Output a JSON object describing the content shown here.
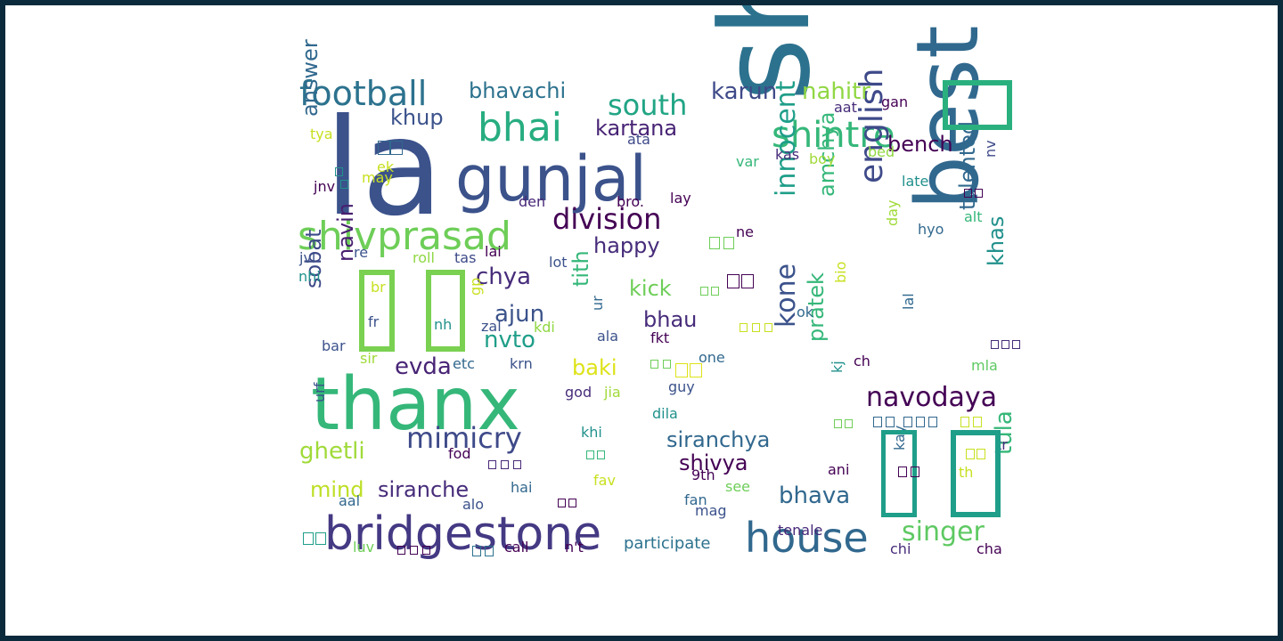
{
  "words": [
    {
      "text": "la",
      "color": "#3b528b"
    },
    {
      "text": "shiva",
      "color": "#2c728e"
    },
    {
      "text": "thanx",
      "color": "#35b779"
    },
    {
      "text": "best",
      "color": "#31688e"
    },
    {
      "text": "gunjal",
      "color": "#3b528b"
    },
    {
      "text": "bridgestone",
      "color": "#443983"
    },
    {
      "text": "house",
      "color": "#31688e"
    },
    {
      "text": "shivprasad",
      "color": "#6ece58"
    },
    {
      "text": "football",
      "color": "#2c728e"
    },
    {
      "text": "bhai",
      "color": "#27ad81"
    },
    {
      "text": "shintre",
      "color": "#35b779"
    },
    {
      "text": "south",
      "color": "#21a585"
    },
    {
      "text": "division",
      "color": "#440154"
    },
    {
      "text": "english",
      "color": "#3e4a89"
    },
    {
      "text": "navodaya",
      "color": "#440154"
    },
    {
      "text": "innocent",
      "color": "#1f9e89"
    },
    {
      "text": "kone",
      "color": "#3b528b"
    },
    {
      "text": "mimicry",
      "color": "#3e4a89"
    },
    {
      "text": "singer",
      "color": "#5ec962"
    },
    {
      "text": "siranchya",
      "color": "#31688e"
    },
    {
      "text": "shivya",
      "color": "#440154"
    },
    {
      "text": "bhava",
      "color": "#31688e"
    },
    {
      "text": "tula",
      "color": "#35b779"
    },
    {
      "text": "ghetli",
      "color": "#a0da39"
    },
    {
      "text": "evda",
      "color": "#482475"
    },
    {
      "text": "karun",
      "color": "#3e4a89"
    },
    {
      "text": "nahitr",
      "color": "#90d743"
    },
    {
      "text": "bhavachi",
      "color": "#2c728e"
    },
    {
      "text": "kartana",
      "color": "#482475"
    },
    {
      "text": "khup",
      "color": "#3b528b"
    },
    {
      "text": "answer",
      "color": "#31688e"
    },
    {
      "text": "happy",
      "color": "#472c7a"
    },
    {
      "text": "bench",
      "color": "#440154"
    },
    {
      "text": "chya",
      "color": "#472c7a"
    },
    {
      "text": "ajun",
      "color": "#3b528b"
    },
    {
      "text": "nvto",
      "color": "#1f9e89"
    },
    {
      "text": "navin",
      "color": "#481f70"
    },
    {
      "text": "sobat",
      "color": "#3e4a89"
    },
    {
      "text": "tith",
      "color": "#35b779"
    },
    {
      "text": "baki",
      "color": "#dde318"
    },
    {
      "text": "kick",
      "color": "#6ece58"
    },
    {
      "text": "bhau",
      "color": "#472c7a"
    },
    {
      "text": "amchya",
      "color": "#35b779"
    },
    {
      "text": "talented",
      "color": "#31688e"
    },
    {
      "text": "khas",
      "color": "#21918c"
    },
    {
      "text": "pratek",
      "color": "#35b779"
    },
    {
      "text": "mind",
      "color": "#bddf26"
    },
    {
      "text": "siranche",
      "color": "#472c7a"
    },
    {
      "text": "participate",
      "color": "#2c728e"
    },
    {
      "text": "mla",
      "color": "#5ec962"
    },
    {
      "text": "aat",
      "color": "#472c7a"
    },
    {
      "text": "gan",
      "color": "#440154"
    },
    {
      "text": "ata",
      "color": "#3e4a89"
    },
    {
      "text": "kas",
      "color": "#472c7a"
    },
    {
      "text": "boy",
      "color": "#a0da39"
    },
    {
      "text": "bed",
      "color": "#90d743"
    },
    {
      "text": "var",
      "color": "#35b779"
    },
    {
      "text": "lay",
      "color": "#440154"
    },
    {
      "text": "bro.",
      "color": "#440154"
    },
    {
      "text": "den",
      "color": "#482878"
    },
    {
      "text": "late",
      "color": "#21918c"
    },
    {
      "text": "alt",
      "color": "#35b779"
    },
    {
      "text": "hyo",
      "color": "#31688e"
    },
    {
      "text": "day",
      "color": "#a0da39"
    },
    {
      "text": "ne",
      "color": "#440154"
    },
    {
      "text": "lot",
      "color": "#3b528b"
    },
    {
      "text": "roll",
      "color": "#90d743"
    },
    {
      "text": "tas",
      "color": "#3e4a89"
    },
    {
      "text": "lai",
      "color": "#440154"
    },
    {
      "text": "re",
      "color": "#3b528b"
    },
    {
      "text": "jvl",
      "color": "#3b528b"
    },
    {
      "text": "nhi",
      "color": "#21918c"
    },
    {
      "text": "jnv",
      "color": "#440154"
    },
    {
      "text": "may",
      "color": "#c8e020"
    },
    {
      "text": "ek",
      "color": "#c8e020"
    },
    {
      "text": "tya",
      "color": "#c8e020"
    },
    {
      "text": "br",
      "color": "#c8e020"
    },
    {
      "text": "fr",
      "color": "#3b528b"
    },
    {
      "text": "nh",
      "color": "#21918c"
    },
    {
      "text": "gp",
      "color": "#c8e020"
    },
    {
      "text": "ur",
      "color": "#31688e"
    },
    {
      "text": "zal",
      "color": "#3b528b"
    },
    {
      "text": "kdi",
      "color": "#90d743"
    },
    {
      "text": "ala",
      "color": "#3b528b"
    },
    {
      "text": "fkt",
      "color": "#440154"
    },
    {
      "text": "bar",
      "color": "#3b528b"
    },
    {
      "text": "sir",
      "color": "#a0da39"
    },
    {
      "text": "etc",
      "color": "#31688e"
    },
    {
      "text": "krn",
      "color": "#3b528b"
    },
    {
      "text": "god",
      "color": "#472c7a"
    },
    {
      "text": "jia",
      "color": "#a0da39"
    },
    {
      "text": "guy",
      "color": "#3b528b"
    },
    {
      "text": "one",
      "color": "#31688e"
    },
    {
      "text": "dila",
      "color": "#21918c"
    },
    {
      "text": "ok",
      "color": "#31688e"
    },
    {
      "text": "bio",
      "color": "#c8e020"
    },
    {
      "text": "lal",
      "color": "#31688e"
    },
    {
      "text": "ch",
      "color": "#440154"
    },
    {
      "text": "kj",
      "color": "#21918c"
    },
    {
      "text": "urf",
      "color": "#3b528b"
    },
    {
      "text": "khi",
      "color": "#21918c"
    },
    {
      "text": "fod",
      "color": "#440154"
    },
    {
      "text": "ani",
      "color": "#440154"
    },
    {
      "text": "9th",
      "color": "#440154"
    },
    {
      "text": "see",
      "color": "#6ece58"
    },
    {
      "text": "fan",
      "color": "#31688e"
    },
    {
      "text": "mag",
      "color": "#3b528b"
    },
    {
      "text": "tenale",
      "color": "#482878"
    },
    {
      "text": "fav",
      "color": "#c8e020"
    },
    {
      "text": "hai",
      "color": "#31688e"
    },
    {
      "text": "aal",
      "color": "#31688e"
    },
    {
      "text": "alo",
      "color": "#3b528b"
    },
    {
      "text": "luv",
      "color": "#6ece58"
    },
    {
      "text": "call",
      "color": "#440154"
    },
    {
      "text": "n't",
      "color": "#440154"
    },
    {
      "text": "chi",
      "color": "#472c7a"
    },
    {
      "text": "cha",
      "color": "#440154"
    },
    {
      "text": "tr",
      "color": "#472c7a"
    },
    {
      "text": "th",
      "color": "#c8e020"
    },
    {
      "text": "kay",
      "color": "#31688e"
    },
    {
      "text": "nv",
      "color": "#3e4a89"
    }
  ],
  "glyph_boxes": [
    {
      "color": "#2ab07f"
    },
    {
      "color": "#7ad151"
    },
    {
      "color": "#7ad151"
    },
    {
      "color": "#1f9e89"
    },
    {
      "color": "#1f9e89"
    },
    {
      "color": "#1f9e89"
    }
  ]
}
